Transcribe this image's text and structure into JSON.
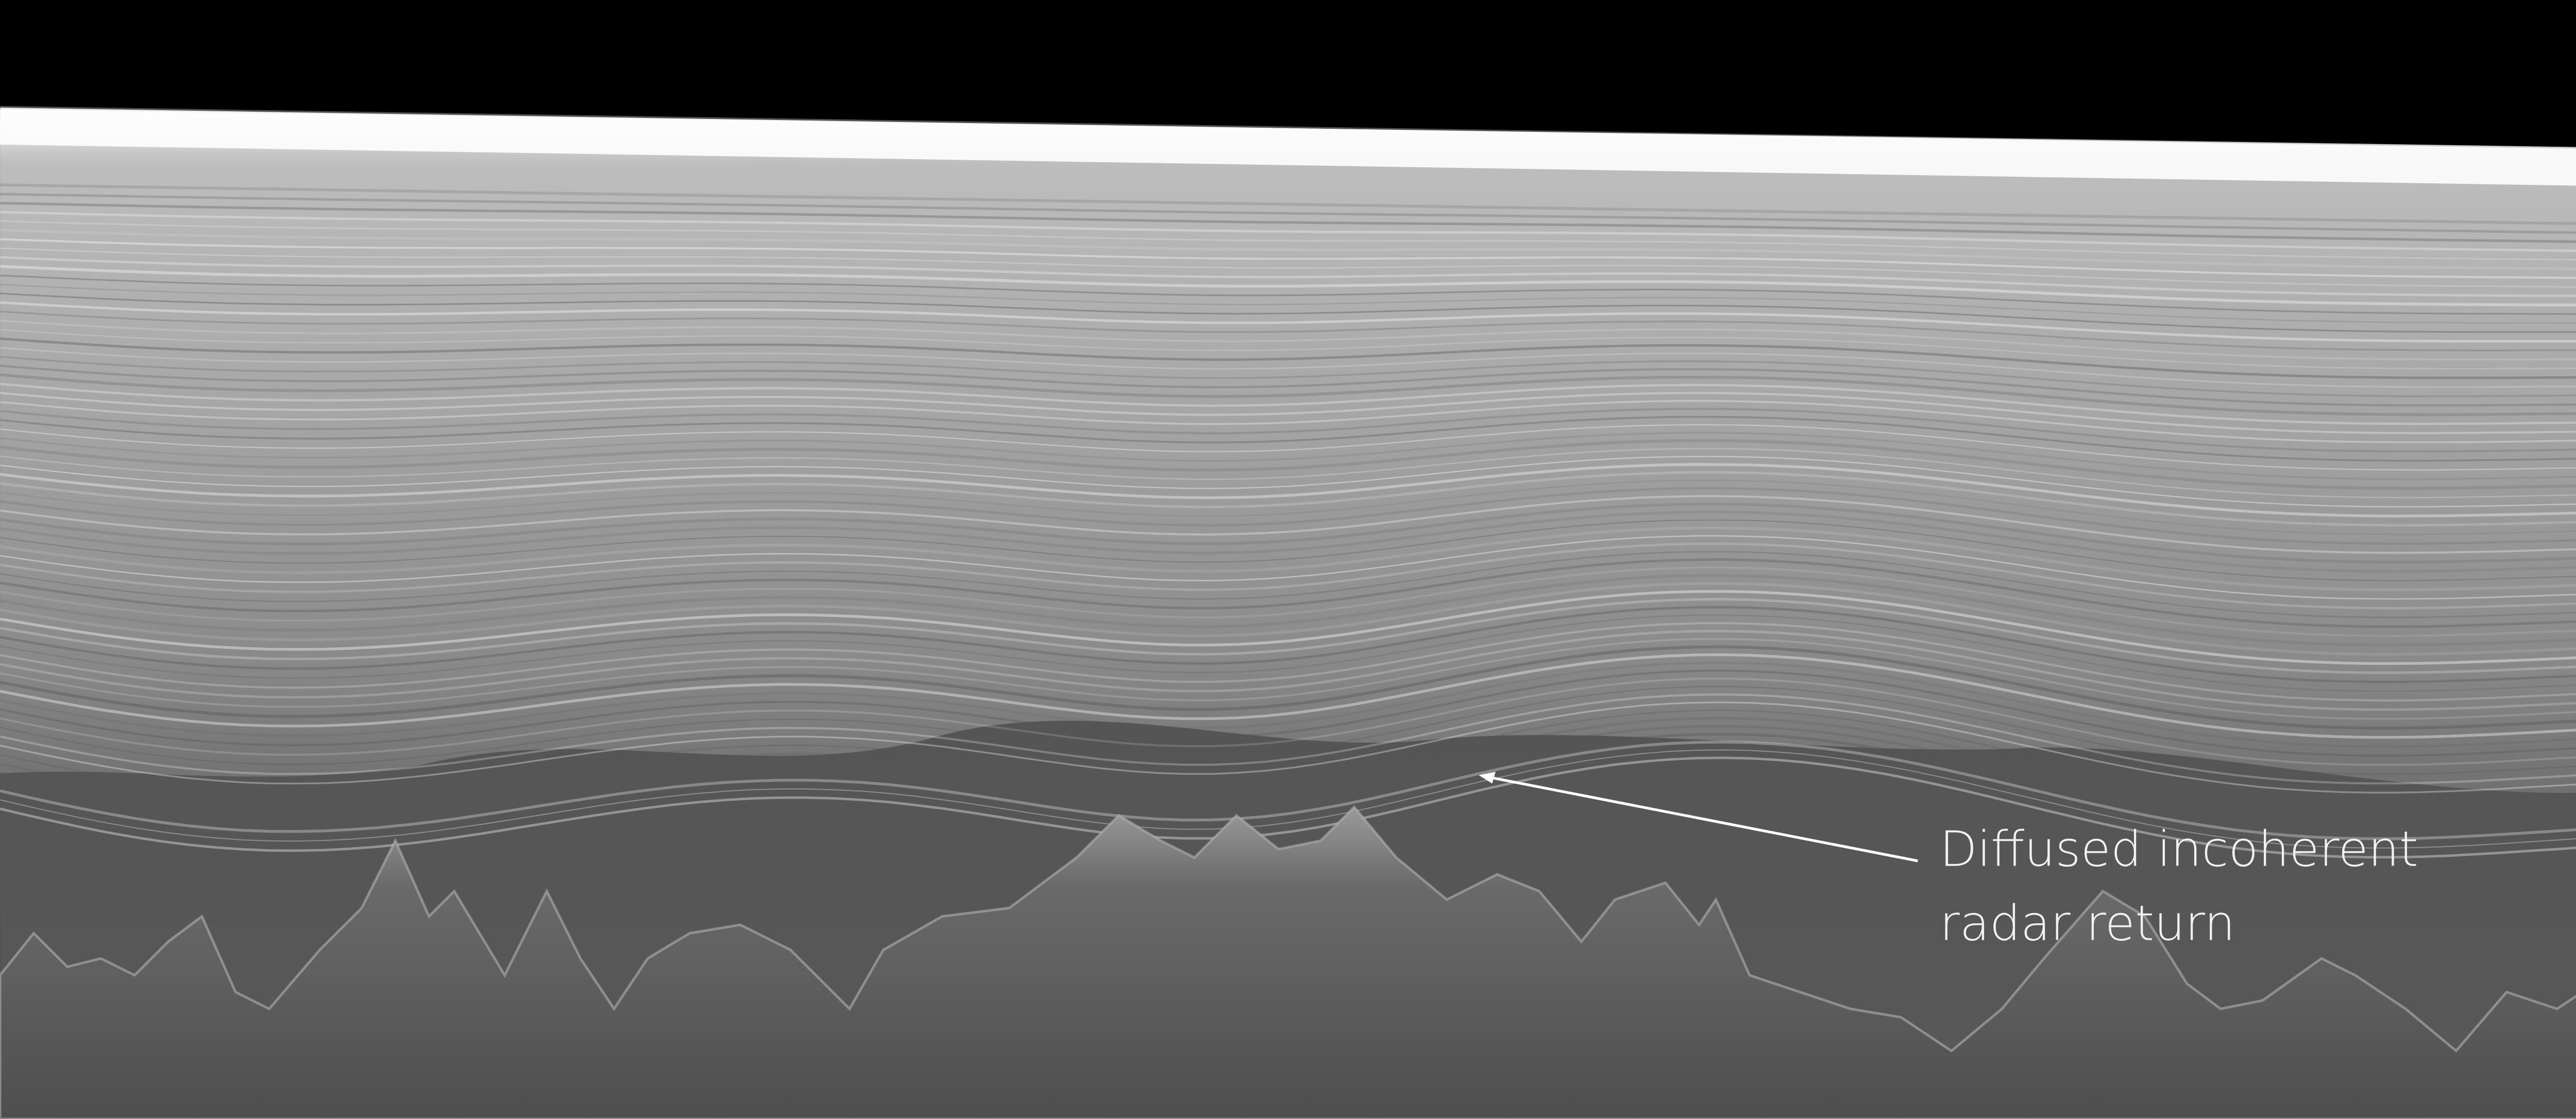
{
  "annotation": {
    "lines": [
      "Diffused incoherent",
      "radar return"
    ]
  }
}
